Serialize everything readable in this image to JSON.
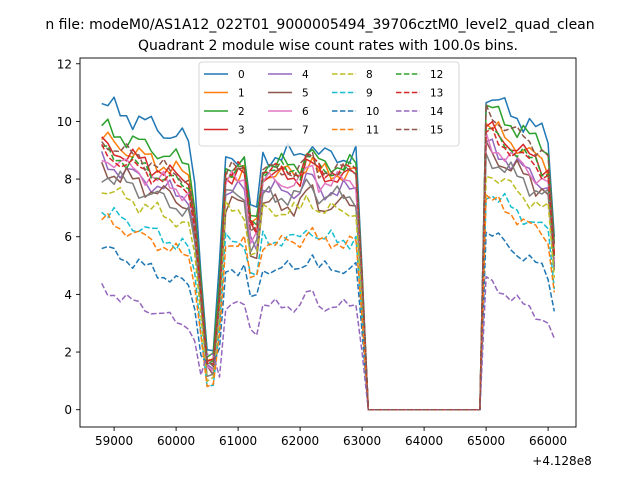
{
  "figure": {
    "suptitle": "n file: modeM0/AS1A12_022T01_9000005494_39706cztM0_level2_quad_clean",
    "title": "Quadrant 2 module wise count rates with 100.0s bins."
  },
  "chart_data": {
    "type": "line",
    "title": "Quadrant 2 module wise count rates with 100.0s bins.",
    "xlabel": "",
    "ylabel": "",
    "x_offset_label": "+4.128e8",
    "xlim": [
      58450,
      66450
    ],
    "ylim": [
      -0.6,
      12.2
    ],
    "xticks": [
      59000,
      60000,
      61000,
      62000,
      63000,
      64000,
      65000,
      66000
    ],
    "yticks": [
      0,
      2,
      4,
      6,
      8,
      10,
      12
    ],
    "grid": false,
    "legend": {
      "placement": "top-center",
      "columns": 4
    },
    "x_start": 58800,
    "x_step": 100,
    "gap": {
      "from": 63100,
      "to": 64900,
      "value": 0
    },
    "series": [
      {
        "name": "0",
        "color": "#1f77b4",
        "dash": "solid",
        "base1": 10.6,
        "base2": 8.8,
        "base3": 10.9,
        "amp": 0.45,
        "phase": 0.0
      },
      {
        "name": "1",
        "color": "#ff7f0e",
        "dash": "solid",
        "base1": 9.4,
        "base2": 8.2,
        "base3": 9.9,
        "amp": 0.4,
        "phase": 0.7
      },
      {
        "name": "2",
        "color": "#2ca02c",
        "dash": "solid",
        "base1": 9.8,
        "base2": 8.5,
        "base3": 10.5,
        "amp": 0.4,
        "phase": 1.3
      },
      {
        "name": "3",
        "color": "#d62728",
        "dash": "solid",
        "base1": 9.2,
        "base2": 8.1,
        "base3": 9.8,
        "amp": 0.4,
        "phase": 1.9
      },
      {
        "name": "4",
        "color": "#9467bd",
        "dash": "solid",
        "base1": 8.6,
        "base2": 7.6,
        "base3": 9.2,
        "amp": 0.4,
        "phase": 2.5
      },
      {
        "name": "5",
        "color": "#8c564b",
        "dash": "solid",
        "base1": 8.4,
        "base2": 7.1,
        "base3": 9.0,
        "amp": 0.45,
        "phase": 3.1
      },
      {
        "name": "6",
        "color": "#e377c2",
        "dash": "solid",
        "base1": 8.8,
        "base2": 7.9,
        "base3": 9.3,
        "amp": 0.4,
        "phase": 3.7
      },
      {
        "name": "7",
        "color": "#7f7f7f",
        "dash": "solid",
        "base1": 8.2,
        "base2": 7.4,
        "base3": 8.8,
        "amp": 0.4,
        "phase": 4.3
      },
      {
        "name": "8",
        "color": "#bcbd22",
        "dash": "dashed",
        "base1": 7.7,
        "base2": 6.9,
        "base3": 8.3,
        "amp": 0.35,
        "phase": 4.9
      },
      {
        "name": "9",
        "color": "#17becf",
        "dash": "dashed",
        "base1": 6.9,
        "base2": 5.9,
        "base3": 7.6,
        "amp": 0.35,
        "phase": 5.5
      },
      {
        "name": "10",
        "color": "#1f77b4",
        "dash": "dashed",
        "base1": 5.6,
        "base2": 4.9,
        "base3": 6.2,
        "amp": 0.3,
        "phase": 0.4
      },
      {
        "name": "11",
        "color": "#ff7f0e",
        "dash": "dashed",
        "base1": 6.6,
        "base2": 5.8,
        "base3": 7.4,
        "amp": 0.3,
        "phase": 1.0
      },
      {
        "name": "12",
        "color": "#2ca02c",
        "dash": "dashed",
        "base1": 9.0,
        "base2": 8.3,
        "base3": 9.7,
        "amp": 0.35,
        "phase": 1.6
      },
      {
        "name": "13",
        "color": "#d62728",
        "dash": "dashed",
        "base1": 8.9,
        "base2": 8.3,
        "base3": 9.6,
        "amp": 0.35,
        "phase": 2.2
      },
      {
        "name": "14",
        "color": "#9467bd",
        "dash": "dashed",
        "base1": 4.2,
        "base2": 3.6,
        "base3": 4.5,
        "amp": 0.25,
        "phase": 2.8
      },
      {
        "name": "15",
        "color": "#8c564b",
        "dash": "dashed",
        "base1": 9.3,
        "base2": 8.3,
        "base3": 10.3,
        "amp": 0.35,
        "phase": 3.4
      }
    ]
  }
}
